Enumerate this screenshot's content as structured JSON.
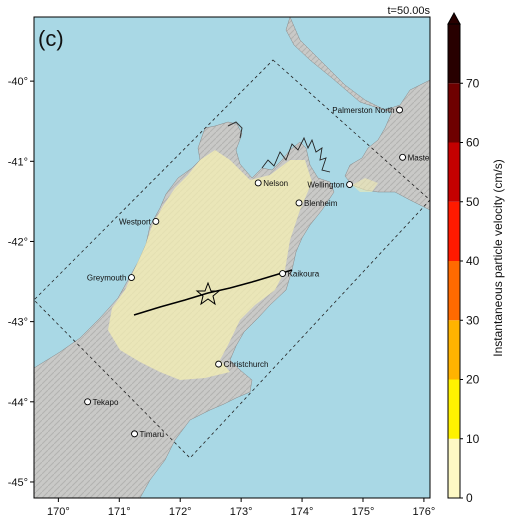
{
  "panel_label": "(c)",
  "time_label": "t=50.00s",
  "colors": {
    "sea": "#a9d8e5",
    "land": "#c8c8c6",
    "shaking": "#f4efb3",
    "fault": "#000000"
  },
  "x_ticks": [
    "170°",
    "171°",
    "172°",
    "173°",
    "174°",
    "175°",
    "176°"
  ],
  "y_ticks": [
    "-40°",
    "-41°",
    "-42°",
    "-43°",
    "-44°",
    "-45°"
  ],
  "cities": [
    {
      "name": "Palmerston North",
      "lon": 175.6,
      "lat": -40.36
    },
    {
      "name": "Masterton",
      "lon": 175.65,
      "lat": -40.95
    },
    {
      "name": "Nelson",
      "lon": 173.28,
      "lat": -41.27
    },
    {
      "name": "Wellington",
      "lon": 174.78,
      "lat": -41.29
    },
    {
      "name": "Blenheim",
      "lon": 173.95,
      "lat": -41.52
    },
    {
      "name": "Westport",
      "lon": 171.6,
      "lat": -41.75
    },
    {
      "name": "Greymouth",
      "lon": 171.2,
      "lat": -42.45
    },
    {
      "name": "Kaikoura",
      "lon": 173.68,
      "lat": -42.4
    },
    {
      "name": "Christchurch",
      "lon": 172.63,
      "lat": -43.53
    },
    {
      "name": "Tekapo",
      "lon": 170.48,
      "lat": -44.0
    },
    {
      "name": "Timaru",
      "lon": 171.25,
      "lat": -44.4
    }
  ],
  "colorbar": {
    "label": "Instantaneous particle velocity (cm/s)",
    "ticks": [
      "0",
      "10",
      "20",
      "30",
      "40",
      "50",
      "60",
      "70"
    ],
    "colors": [
      "#fdf8c4",
      "#fff200",
      "#ffb300",
      "#ff6a00",
      "#ff1a00",
      "#c40000",
      "#6e0000",
      "#280000"
    ],
    "max_value": 70
  }
}
